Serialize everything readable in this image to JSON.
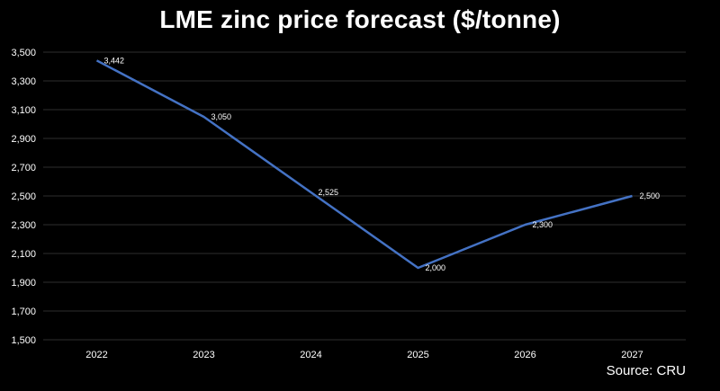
{
  "chart_data": {
    "type": "line",
    "title": "LME zinc price forecast ($/tonne)",
    "xlabel": "",
    "ylabel": "",
    "categories": [
      "2022",
      "2023",
      "2024",
      "2025",
      "2026",
      "2027"
    ],
    "series": [
      {
        "values": [
          3442,
          3050,
          2525,
          2000,
          2300,
          2500
        ]
      }
    ],
    "data_labels": [
      "3,442",
      "3,050",
      "2,525",
      "2,000",
      "2,300",
      "2,500"
    ],
    "y_ticks": [
      1500,
      1700,
      1900,
      2100,
      2300,
      2500,
      2700,
      2900,
      3100,
      3300,
      3500
    ],
    "y_tick_labels": [
      "1,500",
      "1,700",
      "1,900",
      "2,100",
      "2,300",
      "2,500",
      "2,700",
      "2,900",
      "3,100",
      "3,300",
      "3,500"
    ],
    "ylim": [
      1500,
      3500
    ],
    "grid": true,
    "legend": "none",
    "colors": {
      "line": "#4472C4",
      "grid": "#2e2e2e",
      "background": "#000000",
      "text": "#ffffff"
    }
  },
  "source": "Source: CRU"
}
